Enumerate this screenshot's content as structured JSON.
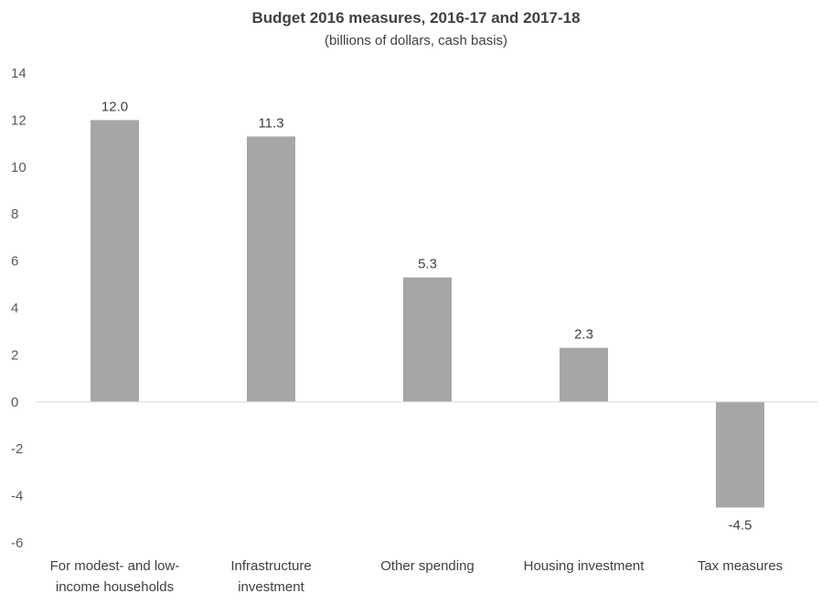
{
  "chart_data": {
    "type": "bar",
    "title": "Budget 2016 measures, 2016-17 and 2017-18",
    "subtitle": "(billions of dollars, cash basis)",
    "categories": [
      [
        "For modest- and low-",
        "income households"
      ],
      [
        "Infrastructure",
        "investment"
      ],
      [
        "Other spending"
      ],
      [
        "Housing investment"
      ],
      [
        "Tax measures"
      ]
    ],
    "values": [
      12.0,
      11.3,
      5.3,
      2.3,
      -4.5
    ],
    "data_labels": [
      "12.0",
      "11.3",
      "5.3",
      "2.3",
      "-4.5"
    ],
    "ylim": [
      -6,
      14
    ],
    "yticks": [
      -6,
      -4,
      -2,
      0,
      2,
      4,
      6,
      8,
      10,
      12,
      14
    ],
    "grid": false,
    "bar_color": "#a6a6a6",
    "axis_color": "#d9d9d9"
  }
}
